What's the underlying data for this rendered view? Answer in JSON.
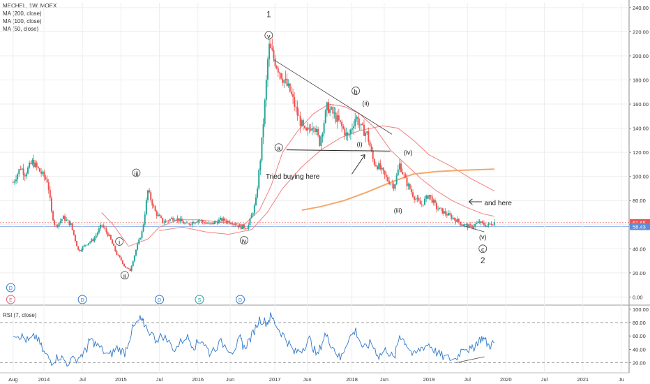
{
  "legend": {
    "symbol": "MECHEL, 1W, MOEX",
    "ma200": "MA (200, close)",
    "ma100": "MA (100, close)",
    "ma50": "MA (50, close)",
    "rsi": "RSI (7, close)"
  },
  "colors": {
    "up": "#26a69a",
    "down": "#ef5350",
    "ma": "#f08080",
    "ma200": "#f5a76a",
    "rsi": "#2f78c8",
    "grid": "#eeeeee",
    "last_up": "#ef5350",
    "last_down": "#5b8dd9"
  },
  "chart_data": {
    "type": "candlestick",
    "y_ticks": [
      "240.00",
      "220.00",
      "200.00",
      "180.00",
      "160.00",
      "140.00",
      "120.00",
      "100.00",
      "80.00",
      "60.00",
      "40.00",
      "20.00",
      "0.00"
    ],
    "ylim": [
      -5,
      244
    ],
    "price_labels": [
      {
        "text": "61.65",
        "value": 61.65,
        "color": "#ef5350"
      },
      {
        "text": "58.43",
        "value": 58.43,
        "color": "#5b8dd9"
      }
    ],
    "x_ticks": [
      "Aug",
      "2014",
      "Jul",
      "2015",
      "Jul",
      "2016",
      "Jun",
      "2017",
      "Jun",
      "2018",
      "Jun",
      "2019",
      "Jul",
      "2020",
      "Jul",
      "2021",
      "Ju"
    ],
    "rsi_ticks": [
      "100.00",
      "80.00",
      "60.00",
      "40.00",
      "20.00"
    ],
    "rsi_ylim": [
      5,
      103
    ],
    "price_series": [
      [
        2013.6,
        95
      ],
      [
        2013.7,
        108
      ],
      [
        2013.75,
        102
      ],
      [
        2013.85,
        112
      ],
      [
        2013.95,
        104
      ],
      [
        2014.05,
        96
      ],
      [
        2014.1,
        70
      ],
      [
        2014.15,
        58
      ],
      [
        2014.25,
        66
      ],
      [
        2014.35,
        60
      ],
      [
        2014.45,
        38
      ],
      [
        2014.55,
        44
      ],
      [
        2014.65,
        48
      ],
      [
        2014.75,
        60
      ],
      [
        2014.85,
        50
      ],
      [
        2014.95,
        35
      ],
      [
        2015.0,
        31
      ],
      [
        2015.05,
        25
      ],
      [
        2015.12,
        22
      ],
      [
        2015.2,
        40
      ],
      [
        2015.28,
        55
      ],
      [
        2015.35,
        88
      ],
      [
        2015.45,
        70
      ],
      [
        2015.55,
        62
      ],
      [
        2015.7,
        66
      ],
      [
        2015.85,
        60
      ],
      [
        2016.0,
        64
      ],
      [
        2016.15,
        60
      ],
      [
        2016.3,
        64
      ],
      [
        2016.45,
        62
      ],
      [
        2016.55,
        58
      ],
      [
        2016.65,
        58
      ],
      [
        2016.75,
        78
      ],
      [
        2016.82,
        120
      ],
      [
        2016.88,
        170
      ],
      [
        2016.92,
        208
      ],
      [
        2017.0,
        196
      ],
      [
        2017.1,
        182
      ],
      [
        2017.2,
        170
      ],
      [
        2017.3,
        150
      ],
      [
        2017.4,
        135
      ],
      [
        2017.5,
        145
      ],
      [
        2017.58,
        128
      ],
      [
        2017.68,
        158
      ],
      [
        2017.78,
        150
      ],
      [
        2017.88,
        140
      ],
      [
        2017.95,
        132
      ],
      [
        2018.05,
        150
      ],
      [
        2018.12,
        140
      ],
      [
        2018.2,
        135
      ],
      [
        2018.28,
        112
      ],
      [
        2018.35,
        108
      ],
      [
        2018.45,
        98
      ],
      [
        2018.55,
        92
      ],
      [
        2018.62,
        110
      ],
      [
        2018.7,
        96
      ],
      [
        2018.8,
        84
      ],
      [
        2018.9,
        76
      ],
      [
        2019.0,
        85
      ],
      [
        2019.1,
        74
      ],
      [
        2019.2,
        70
      ],
      [
        2019.35,
        64
      ],
      [
        2019.45,
        60
      ],
      [
        2019.55,
        58
      ],
      [
        2019.65,
        62
      ],
      [
        2019.75,
        59
      ],
      [
        2019.85,
        62
      ]
    ],
    "ma50": [
      [
        2014.75,
        70
      ],
      [
        2014.9,
        60
      ],
      [
        2015.1,
        42
      ],
      [
        2015.35,
        48
      ],
      [
        2015.5,
        58
      ],
      [
        2015.75,
        64
      ],
      [
        2016.0,
        64
      ],
      [
        2016.3,
        62
      ],
      [
        2016.6,
        60
      ],
      [
        2016.8,
        72
      ],
      [
        2016.95,
        92
      ],
      [
        2017.1,
        120
      ],
      [
        2017.3,
        138
      ],
      [
        2017.5,
        152
      ],
      [
        2017.7,
        160
      ],
      [
        2017.9,
        158
      ],
      [
        2018.1,
        152
      ],
      [
        2018.3,
        140
      ],
      [
        2018.5,
        122
      ],
      [
        2018.7,
        110
      ],
      [
        2018.9,
        98
      ],
      [
        2019.1,
        88
      ],
      [
        2019.3,
        80
      ],
      [
        2019.5,
        74
      ],
      [
        2019.7,
        69
      ],
      [
        2019.85,
        67
      ]
    ],
    "ma100": [
      [
        2015.5,
        55
      ],
      [
        2015.8,
        58
      ],
      [
        2016.1,
        54
      ],
      [
        2016.4,
        52
      ],
      [
        2016.7,
        56
      ],
      [
        2016.9,
        70
      ],
      [
        2017.1,
        90
      ],
      [
        2017.35,
        108
      ],
      [
        2017.6,
        122
      ],
      [
        2017.85,
        132
      ],
      [
        2018.1,
        138
      ],
      [
        2018.4,
        142
      ],
      [
        2018.6,
        140
      ],
      [
        2018.8,
        130
      ],
      [
        2019.0,
        118
      ],
      [
        2019.3,
        108
      ],
      [
        2019.55,
        98
      ],
      [
        2019.85,
        88
      ]
    ],
    "ma200": [
      [
        2017.35,
        72
      ],
      [
        2017.6,
        75
      ],
      [
        2017.9,
        80
      ],
      [
        2018.2,
        87
      ],
      [
        2018.5,
        95
      ],
      [
        2018.8,
        102
      ],
      [
        2019.1,
        104
      ],
      [
        2019.4,
        105
      ],
      [
        2019.85,
        106
      ]
    ],
    "rsi": [
      [
        2013.6,
        65
      ],
      [
        2013.7,
        60
      ],
      [
        2013.8,
        52
      ],
      [
        2013.9,
        60
      ],
      [
        2014.0,
        35
      ],
      [
        2014.1,
        22
      ],
      [
        2014.2,
        30
      ],
      [
        2014.3,
        20
      ],
      [
        2014.45,
        28
      ],
      [
        2014.55,
        38
      ],
      [
        2014.6,
        55
      ],
      [
        2014.7,
        45
      ],
      [
        2014.85,
        30
      ],
      [
        2014.95,
        42
      ],
      [
        2015.05,
        35
      ],
      [
        2015.15,
        70
      ],
      [
        2015.25,
        85
      ],
      [
        2015.3,
        78
      ],
      [
        2015.45,
        55
      ],
      [
        2015.55,
        60
      ],
      [
        2015.7,
        40
      ],
      [
        2015.85,
        60
      ],
      [
        2015.95,
        45
      ],
      [
        2016.05,
        55
      ],
      [
        2016.15,
        35
      ],
      [
        2016.3,
        50
      ],
      [
        2016.45,
        38
      ],
      [
        2016.55,
        55
      ],
      [
        2016.6,
        42
      ],
      [
        2016.7,
        60
      ],
      [
        2016.8,
        85
      ],
      [
        2016.9,
        80
      ],
      [
        2016.95,
        90
      ],
      [
        2017.05,
        70
      ],
      [
        2017.15,
        55
      ],
      [
        2017.25,
        35
      ],
      [
        2017.35,
        40
      ],
      [
        2017.45,
        55
      ],
      [
        2017.55,
        30
      ],
      [
        2017.65,
        62
      ],
      [
        2017.75,
        45
      ],
      [
        2017.85,
        25
      ],
      [
        2017.95,
        55
      ],
      [
        2018.05,
        68
      ],
      [
        2018.15,
        40
      ],
      [
        2018.25,
        50
      ],
      [
        2018.35,
        30
      ],
      [
        2018.45,
        40
      ],
      [
        2018.55,
        25
      ],
      [
        2018.62,
        62
      ],
      [
        2018.7,
        50
      ],
      [
        2018.8,
        30
      ],
      [
        2018.9,
        42
      ],
      [
        2019.0,
        48
      ],
      [
        2019.1,
        35
      ],
      [
        2019.2,
        28
      ],
      [
        2019.35,
        25
      ],
      [
        2019.45,
        45
      ],
      [
        2019.55,
        38
      ],
      [
        2019.62,
        50
      ],
      [
        2019.7,
        58
      ],
      [
        2019.78,
        45
      ],
      [
        2019.85,
        50
      ]
    ]
  },
  "annotations": {
    "wave_1": "1",
    "wave_2": "2",
    "v_top": "v",
    "iii_left": "iii",
    "i_left": "i",
    "ii_left": "ii",
    "iv_left": "iv",
    "a": "a",
    "b": "b",
    "ii_right": "(ii)",
    "i_right": "(i)",
    "iv_right": "(iv)",
    "iii_right": "(iii)",
    "v_right": "(v)",
    "c": "c",
    "tried_buying": "Tried buying here",
    "and_here": "and here",
    "event_d": "D",
    "event_e": "E",
    "event_s": "S"
  }
}
